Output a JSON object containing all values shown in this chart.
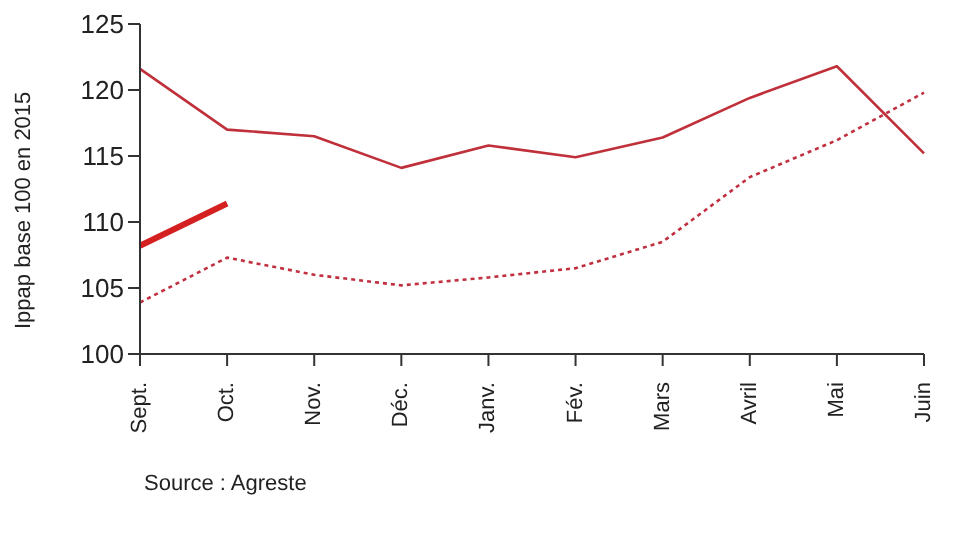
{
  "chart_data": {
    "type": "line",
    "ylabel": "Ippap base 100 en 2015",
    "categories": [
      "Sept.",
      "Oct.",
      "Nov.",
      "Déc.",
      "Janv.",
      "Fév.",
      "Mars",
      "Avril",
      "Mai",
      "Juin"
    ],
    "series": [
      {
        "color": "#d42020",
        "line_style": "solid",
        "values": [
          108.2,
          111.4,
          null,
          null,
          null,
          null,
          null,
          null,
          null,
          null
        ]
      },
      {
        "color": "#c0303a",
        "line_style": "solid",
        "values": [
          121.6,
          117,
          116.5,
          114.1,
          115.8,
          114.9,
          116.4,
          119.4,
          121.8,
          115.2
        ]
      },
      {
        "color": "#c03040",
        "line_style": "dotted",
        "values": [
          103.9,
          107.3,
          106,
          105.2,
          105.8,
          106.5,
          108.5,
          113.4,
          116.2,
          119.8
        ]
      }
    ],
    "ylim": [
      100,
      125
    ],
    "yticks": [
      100,
      105,
      110,
      115,
      120,
      125
    ],
    "grid": false,
    "legend": false,
    "marker": "none",
    "annotations": [
      "Source : Agreste"
    ]
  }
}
